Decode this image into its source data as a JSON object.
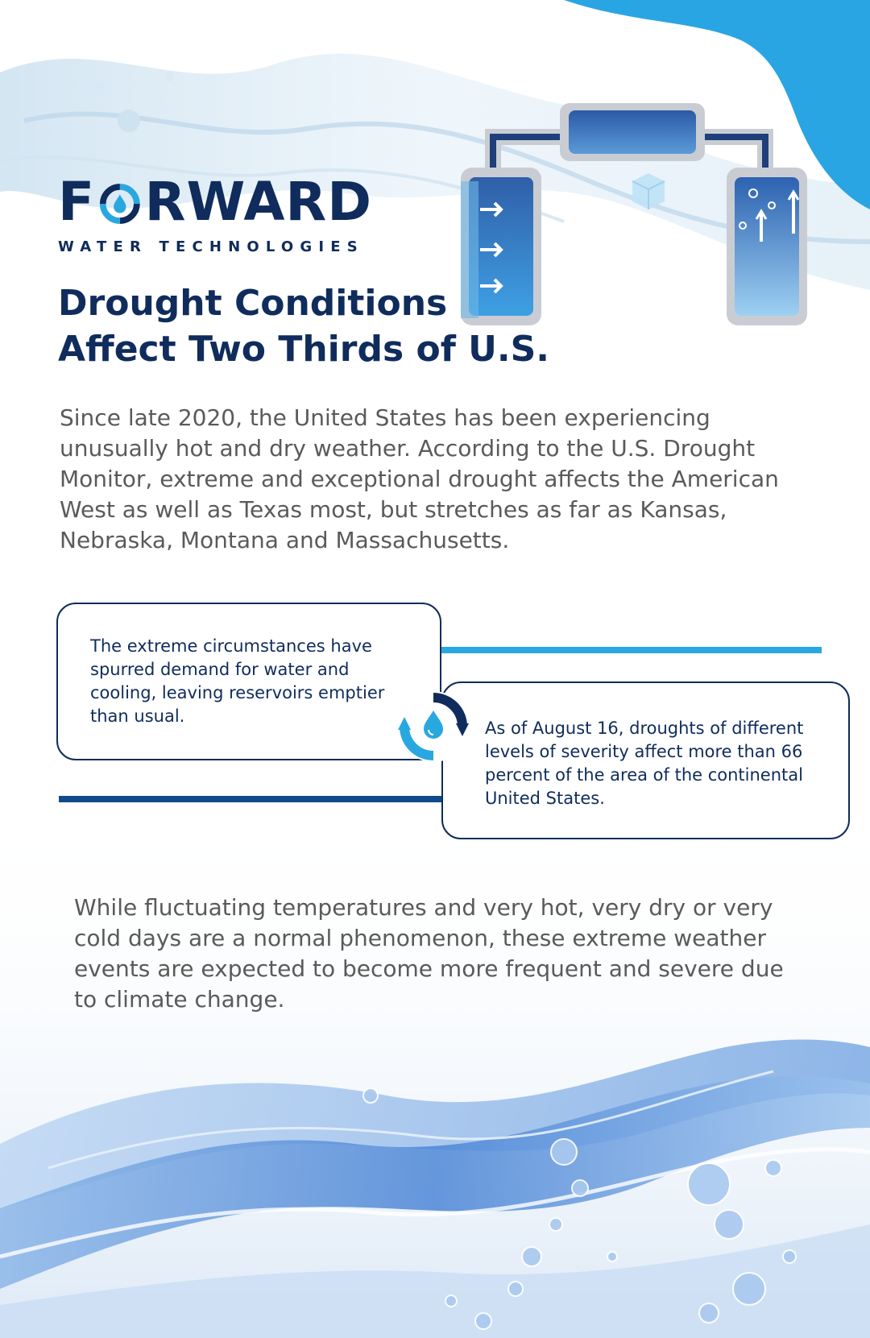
{
  "brand": {
    "logo_letter_f": "F",
    "logo_letters_rest": "RWARD",
    "logo_subtitle": "WATER TECHNOLOGIES",
    "icons": [
      "water-drop-cycle-icon",
      "filtration-system-illustration",
      "water-splash-background"
    ],
    "colors": {
      "navy": "#0f2c5c",
      "accent_blue": "#29a8e0",
      "text_gray": "#5a5a5a"
    }
  },
  "title": {
    "line1": "Drought Conditions",
    "line2": "Affect Two Thirds of U.S."
  },
  "intro": {
    "text": "Since late 2020, the United States has been experiencing unusually hot and dry weather. According to the U.S. Drought Monitor, extreme and exceptional drought affects the American West as well as Texas most, but stretches as far as Kansas, Nebraska, Montana and Massachusetts."
  },
  "facts": {
    "left": "The extreme circumstances have spurred demand for water and cooling, leaving reservoirs emptier than usual.",
    "right": "As of August 16, droughts of different levels of severity affect more than 66 percent of the area of the continental United States."
  },
  "closing": {
    "text": "While fluctuating temperatures and very hot, very dry or very cold days are a normal phenomenon, these extreme weather events are expected to become more frequent and severe due to climate change."
  }
}
